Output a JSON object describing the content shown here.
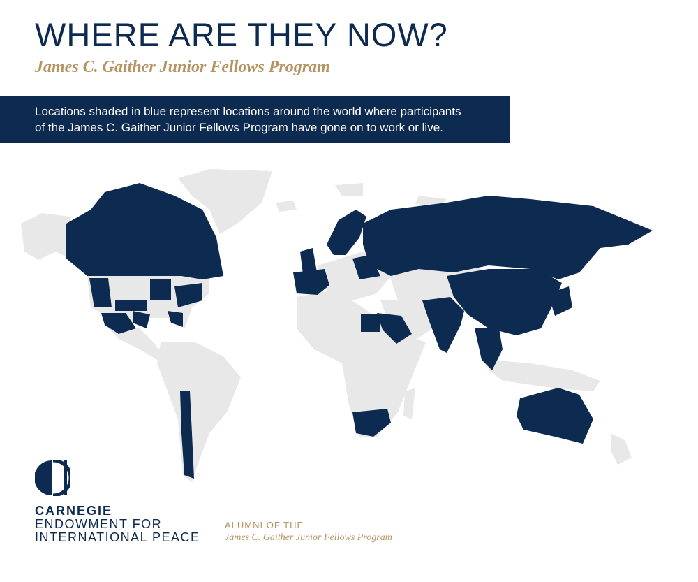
{
  "header": {
    "title": "WHERE ARE THEY NOW?",
    "subtitle": "James C. Gaither Junior Fellows Program"
  },
  "banner": {
    "line1": "Locations shaded in blue represent locations around the world where participants",
    "line2": "of the James C. Gaither Junior Fellows Program have gone on to work or live."
  },
  "colors": {
    "shaded": "#0d2a50",
    "unshaded": "#e8e8e8",
    "accent_gold": "#b59461"
  },
  "footer": {
    "org_line1": "CARNEGIE",
    "org_line2": "ENDOWMENT FOR",
    "org_line3": "INTERNATIONAL PEACE",
    "alumni_label": "ALUMNI OF THE",
    "alumni_program": "James C. Gaither Junior Fellows Program"
  }
}
